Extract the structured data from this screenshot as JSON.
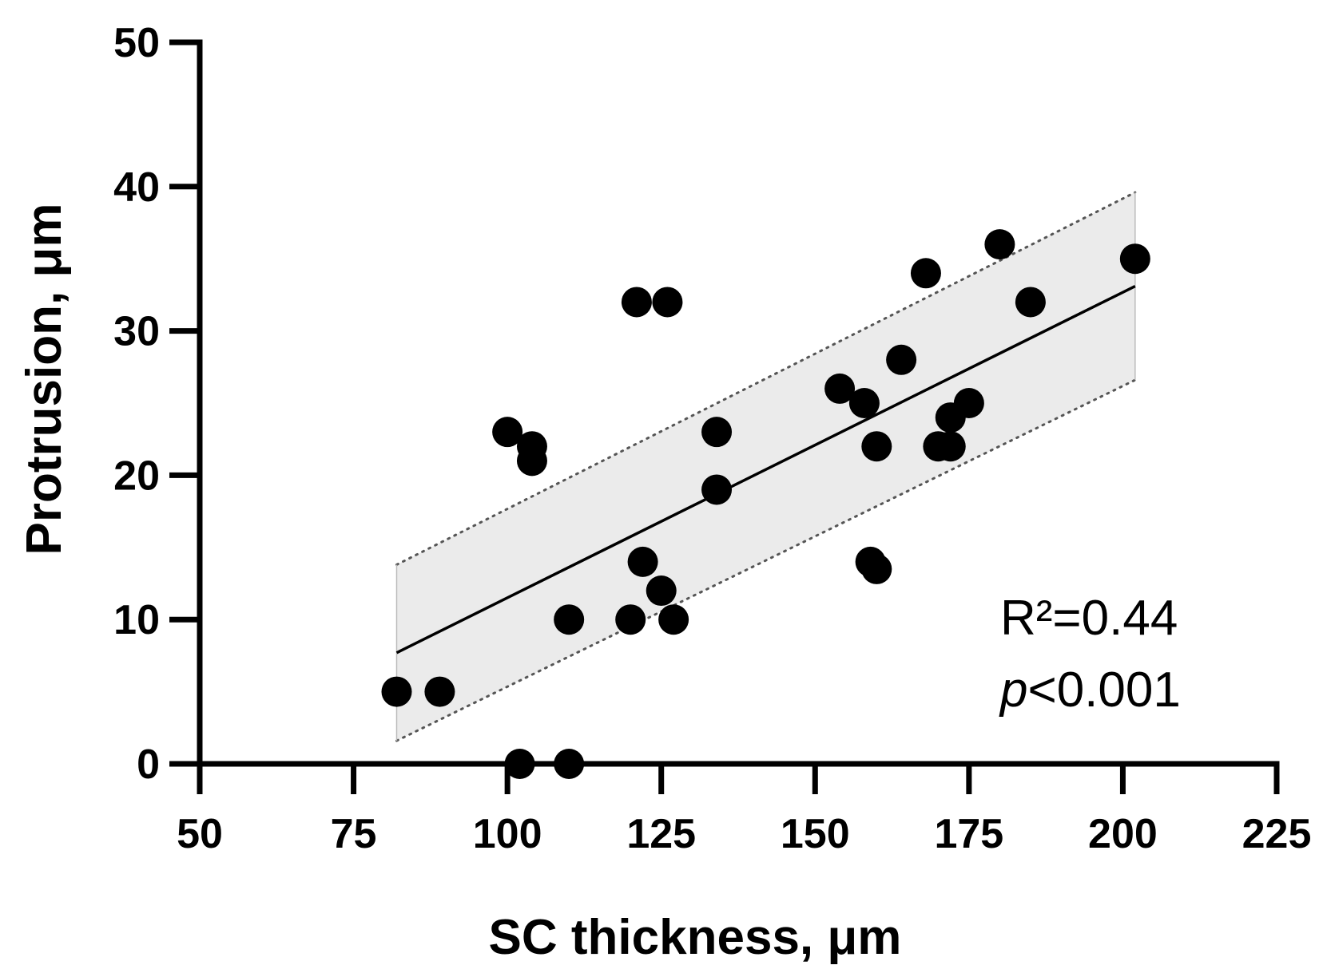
{
  "chart_data": {
    "type": "scatter",
    "xlabel": "SC thickness, μm",
    "ylabel": "Protrusion, μm",
    "xlim": [
      50,
      225
    ],
    "ylim": [
      0,
      50
    ],
    "x_ticks": [
      "50",
      "75",
      "100",
      "125",
      "150",
      "175",
      "200",
      "225"
    ],
    "y_ticks": [
      "0",
      "10",
      "20",
      "30",
      "40",
      "50"
    ],
    "grid": false,
    "points": [
      {
        "x": 82,
        "y": 5
      },
      {
        "x": 89,
        "y": 5
      },
      {
        "x": 100,
        "y": 23
      },
      {
        "x": 104,
        "y": 22
      },
      {
        "x": 104,
        "y": 21
      },
      {
        "x": 102,
        "y": 0
      },
      {
        "x": 110,
        "y": 0
      },
      {
        "x": 110,
        "y": 10
      },
      {
        "x": 120,
        "y": 10
      },
      {
        "x": 122,
        "y": 14
      },
      {
        "x": 125,
        "y": 12
      },
      {
        "x": 127,
        "y": 10
      },
      {
        "x": 121,
        "y": 32
      },
      {
        "x": 126,
        "y": 32
      },
      {
        "x": 134,
        "y": 23
      },
      {
        "x": 134,
        "y": 19
      },
      {
        "x": 154,
        "y": 26
      },
      {
        "x": 158,
        "y": 25
      },
      {
        "x": 160,
        "y": 22
      },
      {
        "x": 159,
        "y": 14
      },
      {
        "x": 160,
        "y": 13.5
      },
      {
        "x": 164,
        "y": 28
      },
      {
        "x": 168,
        "y": 34
      },
      {
        "x": 170,
        "y": 22
      },
      {
        "x": 172,
        "y": 22
      },
      {
        "x": 172,
        "y": 24
      },
      {
        "x": 175,
        "y": 25
      },
      {
        "x": 180,
        "y": 36
      },
      {
        "x": 185,
        "y": 32
      },
      {
        "x": 202,
        "y": 35
      }
    ],
    "regression_line": {
      "x": [
        82,
        202
      ],
      "y": [
        7.7,
        33.1
      ]
    },
    "confidence_band": {
      "x": [
        82,
        202
      ],
      "upper": [
        13.8,
        39.6
      ],
      "lower": [
        1.6,
        26.6
      ]
    },
    "annotations": {
      "r_squared": "R²=0.44",
      "p_symbol": "p",
      "p_value": "<0.001"
    },
    "colors": {
      "points": "#000000",
      "band_fill": "#ebebeb",
      "axis": "#000000"
    }
  }
}
